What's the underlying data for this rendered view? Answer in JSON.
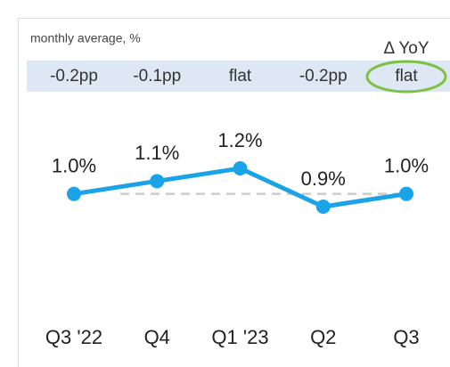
{
  "chart_data": {
    "type": "line",
    "subtitle": "monthly average, %",
    "change_header": "Δ YoY",
    "categories": [
      "Q3 '22",
      "Q4",
      "Q1 '23",
      "Q2",
      "Q3"
    ],
    "changes": [
      "-0.2pp",
      "-0.1pp",
      "flat",
      "-0.2pp",
      "flat"
    ],
    "series": [
      {
        "name": "monthly average",
        "color": "#1aa3e6",
        "values": [
          1.0,
          1.1,
          1.2,
          0.9,
          1.0
        ],
        "value_labels": [
          "1.0%",
          "1.1%",
          "1.2%",
          "0.9%",
          "1.0%"
        ]
      }
    ],
    "reference_line": 1.0,
    "reference_color": "#cccccc",
    "band_color": "#dde8f4",
    "highlight_color": "#7cc242"
  }
}
